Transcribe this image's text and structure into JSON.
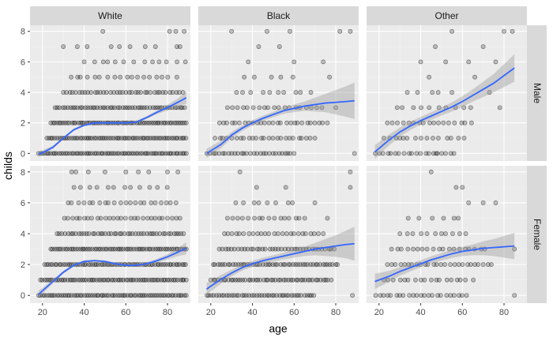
{
  "chart_data": {
    "type": "scatter",
    "title": "",
    "xlabel": "age",
    "ylabel": "childs",
    "facet_cols": [
      "White",
      "Black",
      "Other"
    ],
    "facet_rows": [
      "Male",
      "Female"
    ],
    "xlim": [
      14,
      91
    ],
    "ylim": [
      -0.5,
      8.4
    ],
    "x_ticks": [
      20,
      40,
      60,
      80
    ],
    "y_ticks": [
      0,
      2,
      4,
      6,
      8
    ],
    "grid": true,
    "point_color": "#000000",
    "point_alpha": 0.3,
    "smooth_color": "#3366FF",
    "ribbon_color": "#999999",
    "panel_background": "#EBEBEB",
    "strip_background": "#D9D9D9",
    "panels": [
      {
        "col": "White",
        "row": "Male",
        "smooth": [
          [
            18,
            -0.05
          ],
          [
            20,
            0.05
          ],
          [
            25,
            0.4
          ],
          [
            30,
            1.0
          ],
          [
            35,
            1.55
          ],
          [
            40,
            1.85
          ],
          [
            45,
            2.0
          ],
          [
            50,
            2.0
          ],
          [
            55,
            2.0
          ],
          [
            60,
            2.0
          ],
          [
            65,
            2.05
          ],
          [
            70,
            2.35
          ],
          [
            75,
            2.7
          ],
          [
            80,
            3.0
          ],
          [
            85,
            3.35
          ],
          [
            89,
            3.65
          ]
        ],
        "ribbon_halfwidth": [
          0.2,
          0.15,
          0.1,
          0.08,
          0.08,
          0.08,
          0.07,
          0.07,
          0.07,
          0.07,
          0.08,
          0.1,
          0.12,
          0.18,
          0.25,
          0.4
        ],
        "rows": [
          {
            "y": 0,
            "x0": 18,
            "x1": 89,
            "step": 1.0
          },
          {
            "y": 1,
            "x0": 22,
            "x1": 89,
            "step": 1.0
          },
          {
            "y": 2,
            "x0": 24,
            "x1": 89,
            "step": 1.0
          },
          {
            "y": 3,
            "x0": 26,
            "x1": 89,
            "step": 1.2
          },
          {
            "y": 4,
            "x0": 30,
            "x1": 88,
            "step": 1.5
          },
          {
            "y": 5,
            "x0": 33,
            "x1": 86,
            "step": 3.0
          },
          {
            "y": 6,
            "x0": 40,
            "x1": 89,
            "step": 4.0
          },
          {
            "y": 7,
            "x0": 35,
            "x1": 86,
            "step": 8.0
          }
        ],
        "points": [
          [
            30,
            7
          ],
          [
            49,
            8
          ],
          [
            62,
            7
          ],
          [
            81,
            8
          ],
          [
            84,
            8
          ],
          [
            88,
            8
          ],
          [
            86,
            7
          ]
        ]
      },
      {
        "col": "Black",
        "row": "Male",
        "smooth": [
          [
            18,
            0.0
          ],
          [
            25,
            0.6
          ],
          [
            30,
            1.2
          ],
          [
            35,
            1.65
          ],
          [
            40,
            2.0
          ],
          [
            45,
            2.3
          ],
          [
            50,
            2.55
          ],
          [
            55,
            2.8
          ],
          [
            60,
            2.95
          ],
          [
            65,
            3.1
          ],
          [
            70,
            3.2
          ],
          [
            75,
            3.3
          ],
          [
            80,
            3.35
          ],
          [
            85,
            3.4
          ],
          [
            89,
            3.45
          ]
        ],
        "ribbon_halfwidth": [
          0.3,
          0.25,
          0.2,
          0.18,
          0.17,
          0.17,
          0.18,
          0.2,
          0.25,
          0.3,
          0.45,
          0.6,
          0.8,
          1.0,
          1.2
        ],
        "rows": [
          {
            "y": 0,
            "x0": 18,
            "x1": 60,
            "step": 1.5
          },
          {
            "y": 1,
            "x0": 22,
            "x1": 70,
            "step": 2.0
          },
          {
            "y": 2,
            "x0": 24,
            "x1": 76,
            "step": 2.0
          },
          {
            "y": 3,
            "x0": 28,
            "x1": 75,
            "step": 2.5
          },
          {
            "y": 4,
            "x0": 32,
            "x1": 70,
            "step": 4.0
          },
          {
            "y": 5,
            "x0": 36,
            "x1": 62,
            "step": 6.0
          }
        ],
        "points": [
          [
            30,
            8
          ],
          [
            47,
            8
          ],
          [
            58,
            8
          ],
          [
            82,
            8
          ],
          [
            87,
            8
          ],
          [
            43,
            7
          ],
          [
            53,
            7
          ],
          [
            38,
            6
          ],
          [
            60,
            6
          ],
          [
            74,
            6
          ],
          [
            77,
            5
          ],
          [
            89,
            0
          ],
          [
            80,
            3
          ]
        ]
      },
      {
        "col": "Other",
        "row": "Male",
        "smooth": [
          [
            18,
            0.1
          ],
          [
            25,
            0.9
          ],
          [
            30,
            1.4
          ],
          [
            35,
            1.8
          ],
          [
            40,
            2.15
          ],
          [
            45,
            2.45
          ],
          [
            50,
            2.75
          ],
          [
            55,
            3.05
          ],
          [
            60,
            3.4
          ],
          [
            65,
            3.8
          ],
          [
            70,
            4.2
          ],
          [
            75,
            4.6
          ],
          [
            80,
            5.1
          ],
          [
            85,
            5.6
          ]
        ],
        "ribbon_halfwidth": [
          0.45,
          0.35,
          0.3,
          0.27,
          0.25,
          0.25,
          0.26,
          0.3,
          0.35,
          0.4,
          0.5,
          0.6,
          0.75,
          0.9
        ],
        "rows": [
          {
            "y": 0,
            "x0": 18,
            "x1": 56,
            "step": 2.0
          },
          {
            "y": 1,
            "x0": 22,
            "x1": 62,
            "step": 3.0
          },
          {
            "y": 2,
            "x0": 24,
            "x1": 66,
            "step": 2.5
          },
          {
            "y": 3,
            "x0": 28,
            "x1": 64,
            "step": 4.0
          },
          {
            "y": 4,
            "x0": 32,
            "x1": 60,
            "step": 6.0
          }
        ],
        "points": [
          [
            55,
            8
          ],
          [
            80,
            8
          ],
          [
            84,
            8
          ],
          [
            47,
            7
          ],
          [
            70,
            7
          ],
          [
            40,
            6
          ],
          [
            52,
            6
          ],
          [
            63,
            6
          ],
          [
            76,
            6
          ],
          [
            44,
            5
          ],
          [
            66,
            5
          ],
          [
            73,
            4
          ],
          [
            78,
            3
          ],
          [
            30,
            1
          ],
          [
            48,
            0
          ]
        ]
      },
      {
        "col": "White",
        "row": "Female",
        "smooth": [
          [
            18,
            0.05
          ],
          [
            20,
            0.3
          ],
          [
            25,
            0.9
          ],
          [
            30,
            1.5
          ],
          [
            35,
            1.95
          ],
          [
            40,
            2.2
          ],
          [
            45,
            2.25
          ],
          [
            50,
            2.2
          ],
          [
            55,
            2.05
          ],
          [
            60,
            1.95
          ],
          [
            65,
            1.95
          ],
          [
            70,
            2.05
          ],
          [
            75,
            2.25
          ],
          [
            80,
            2.5
          ],
          [
            85,
            2.8
          ],
          [
            89,
            3.05
          ]
        ],
        "ribbon_halfwidth": [
          0.25,
          0.2,
          0.12,
          0.1,
          0.08,
          0.08,
          0.07,
          0.07,
          0.07,
          0.07,
          0.08,
          0.1,
          0.12,
          0.18,
          0.25,
          0.4
        ],
        "rows": [
          {
            "y": 0,
            "x0": 18,
            "x1": 89,
            "step": 1.0
          },
          {
            "y": 1,
            "x0": 19,
            "x1": 89,
            "step": 1.0
          },
          {
            "y": 2,
            "x0": 21,
            "x1": 89,
            "step": 1.0
          },
          {
            "y": 3,
            "x0": 24,
            "x1": 89,
            "step": 1.0
          },
          {
            "y": 4,
            "x0": 27,
            "x1": 89,
            "step": 1.3
          },
          {
            "y": 5,
            "x0": 30,
            "x1": 86,
            "step": 2.0
          },
          {
            "y": 6,
            "x0": 32,
            "x1": 86,
            "step": 2.5
          },
          {
            "y": 7,
            "x0": 35,
            "x1": 80,
            "step": 4.0
          }
        ],
        "points": [
          [
            34,
            8
          ],
          [
            36,
            8
          ],
          [
            42,
            8
          ],
          [
            50,
            8
          ],
          [
            60,
            8
          ],
          [
            66,
            8
          ],
          [
            71,
            8
          ],
          [
            80,
            8
          ],
          [
            85,
            8
          ]
        ]
      },
      {
        "col": "Black",
        "row": "Female",
        "smooth": [
          [
            18,
            0.4
          ],
          [
            20,
            0.6
          ],
          [
            25,
            1.05
          ],
          [
            30,
            1.45
          ],
          [
            35,
            1.8
          ],
          [
            40,
            2.05
          ],
          [
            45,
            2.25
          ],
          [
            50,
            2.4
          ],
          [
            55,
            2.55
          ],
          [
            60,
            2.7
          ],
          [
            65,
            2.85
          ],
          [
            70,
            3.0
          ],
          [
            75,
            3.1
          ],
          [
            80,
            3.2
          ],
          [
            85,
            3.3
          ],
          [
            89,
            3.35
          ]
        ],
        "ribbon_halfwidth": [
          0.4,
          0.35,
          0.28,
          0.22,
          0.2,
          0.19,
          0.19,
          0.2,
          0.22,
          0.25,
          0.3,
          0.4,
          0.55,
          0.7,
          0.9,
          1.1
        ],
        "rows": [
          {
            "y": 0,
            "x0": 18,
            "x1": 70,
            "step": 1.2
          },
          {
            "y": 1,
            "x0": 20,
            "x1": 78,
            "step": 1.2
          },
          {
            "y": 2,
            "x0": 21,
            "x1": 82,
            "step": 1.2
          },
          {
            "y": 3,
            "x0": 24,
            "x1": 80,
            "step": 1.5
          },
          {
            "y": 4,
            "x0": 26,
            "x1": 74,
            "step": 2.0
          },
          {
            "y": 5,
            "x0": 28,
            "x1": 66,
            "step": 2.5
          },
          {
            "y": 6,
            "x0": 32,
            "x1": 60,
            "step": 4.0
          }
        ],
        "points": [
          [
            34,
            8
          ],
          [
            42,
            7
          ],
          [
            56,
            7
          ],
          [
            87,
            8
          ],
          [
            87,
            7
          ],
          [
            70,
            6
          ],
          [
            76,
            5
          ],
          [
            88,
            0
          ]
        ]
      },
      {
        "col": "Other",
        "row": "Female",
        "smooth": [
          [
            18,
            0.9
          ],
          [
            25,
            1.25
          ],
          [
            30,
            1.55
          ],
          [
            35,
            1.8
          ],
          [
            40,
            2.05
          ],
          [
            45,
            2.3
          ],
          [
            50,
            2.5
          ],
          [
            55,
            2.7
          ],
          [
            60,
            2.85
          ],
          [
            65,
            2.95
          ],
          [
            70,
            3.05
          ],
          [
            75,
            3.1
          ],
          [
            80,
            3.15
          ],
          [
            85,
            3.2
          ]
        ],
        "ribbon_halfwidth": [
          0.5,
          0.35,
          0.28,
          0.25,
          0.23,
          0.23,
          0.24,
          0.27,
          0.3,
          0.35,
          0.45,
          0.55,
          0.7,
          0.85
        ],
        "rows": [
          {
            "y": 0,
            "x0": 18,
            "x1": 62,
            "step": 2.0
          },
          {
            "y": 1,
            "x0": 22,
            "x1": 66,
            "step": 2.5
          },
          {
            "y": 2,
            "x0": 24,
            "x1": 74,
            "step": 2.0
          },
          {
            "y": 3,
            "x0": 26,
            "x1": 72,
            "step": 2.5
          },
          {
            "y": 4,
            "x0": 30,
            "x1": 64,
            "step": 3.5
          },
          {
            "y": 5,
            "x0": 34,
            "x1": 58,
            "step": 6.0
          }
        ],
        "points": [
          [
            45,
            8
          ],
          [
            57,
            7
          ],
          [
            60,
            7
          ],
          [
            63,
            6
          ],
          [
            70,
            6
          ],
          [
            76,
            6
          ],
          [
            85,
            3
          ],
          [
            85,
            0
          ],
          [
            56,
            5
          ],
          [
            50,
            4
          ]
        ]
      }
    ]
  }
}
